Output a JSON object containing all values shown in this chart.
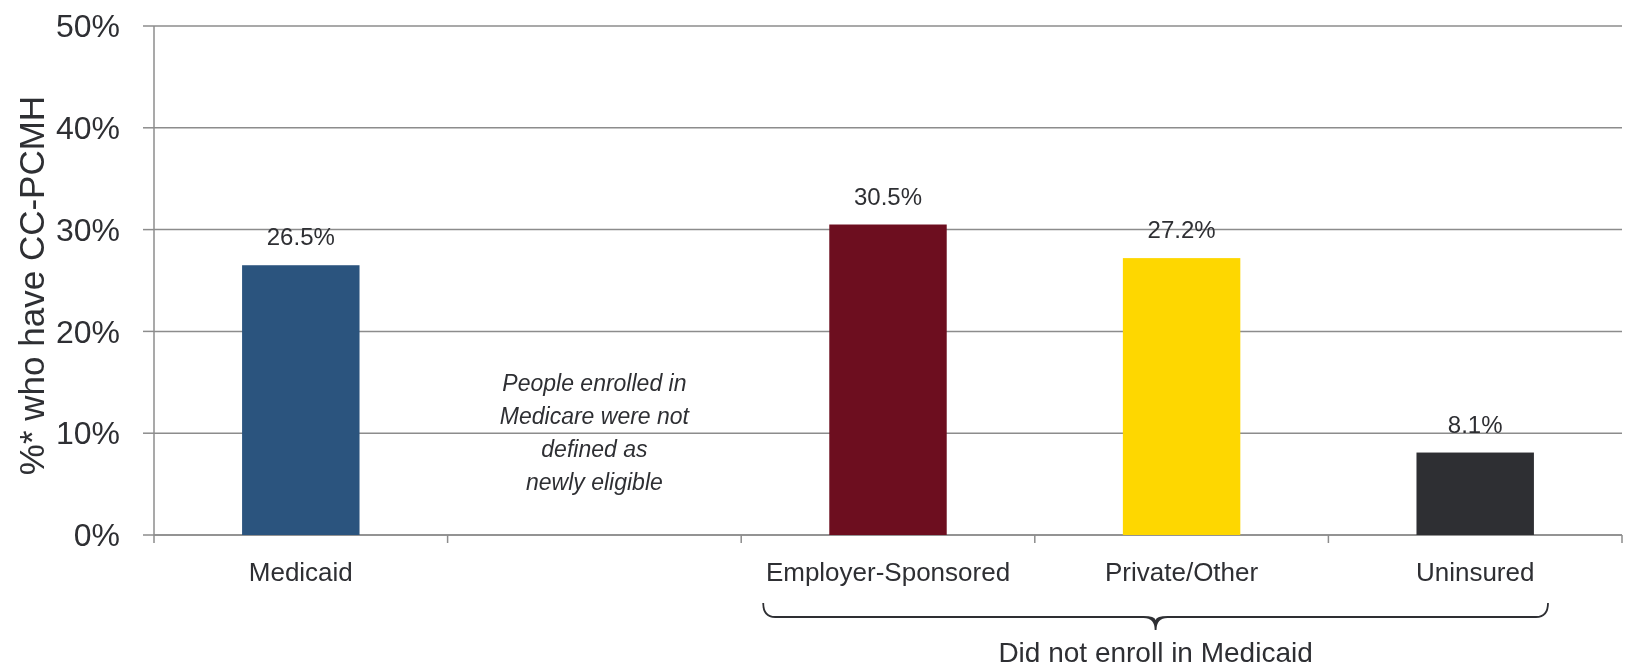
{
  "chart_data": {
    "type": "bar",
    "ylabel": "%* who have CC-PCMH",
    "categories": [
      "Medicaid",
      null,
      "Employer-Sponsored",
      "Private/Other",
      "Uninsured"
    ],
    "values": [
      26.5,
      null,
      30.5,
      27.2,
      8.1
    ],
    "colors": [
      "#2b547e",
      null,
      "#6d0e1f",
      "#fed700",
      "#2e2f33"
    ],
    "value_labels": [
      "26.5%",
      null,
      "30.5%",
      "27.2%",
      "8.1%"
    ],
    "ylim": [
      0,
      50
    ],
    "yticks": [
      {
        "value": 0,
        "label": "0%"
      },
      {
        "value": 10,
        "label": "10%"
      },
      {
        "value": 20,
        "label": "20%"
      },
      {
        "value": 30,
        "label": "30%"
      },
      {
        "value": 40,
        "label": "40%"
      },
      {
        "value": 50,
        "label": "50%"
      }
    ],
    "grid": "y",
    "annotations": [
      "People enrolled in\nMedicare were not\ndefined as\nnewly eligible",
      "Did not enroll in Medicaid"
    ]
  }
}
